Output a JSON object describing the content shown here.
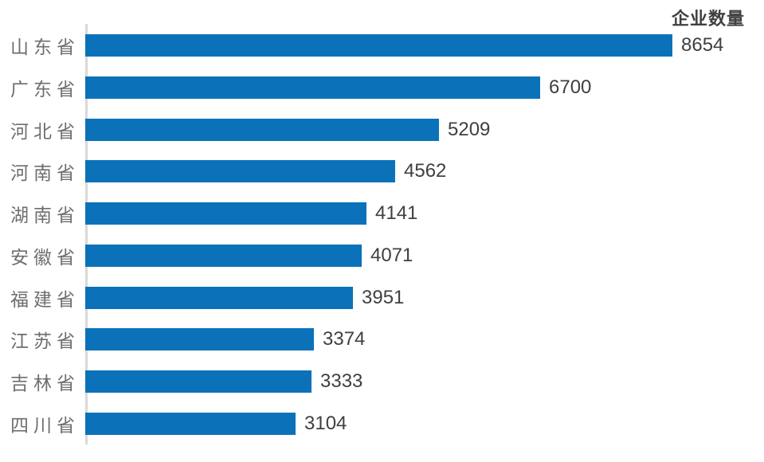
{
  "chart_data": {
    "type": "bar",
    "orientation": "horizontal",
    "title": "企业数量",
    "categories": [
      "山东省",
      "广东省",
      "河北省",
      "河南省",
      "湖南省",
      "安徽省",
      "福建省",
      "江苏省",
      "吉林省",
      "四川省"
    ],
    "values": [
      8654,
      6700,
      5209,
      4562,
      4141,
      4071,
      3951,
      3374,
      3333,
      3104
    ],
    "xlabel": "",
    "ylabel": "",
    "xlim": [
      0,
      9000
    ],
    "grid": false,
    "value_labels_shown": true,
    "legend_position": "top-right",
    "colors": {
      "bar": "#0B72B9",
      "category_label": "#6E6E6E",
      "value_label": "#404040",
      "title": "#404040",
      "axis_line": "#D9D9D9"
    }
  }
}
